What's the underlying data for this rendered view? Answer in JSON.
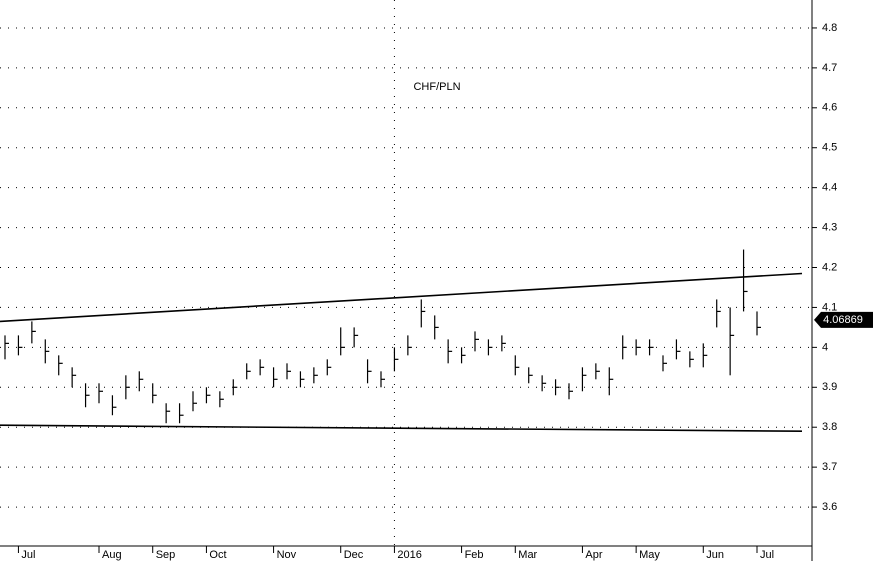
{
  "chart_data": {
    "type": "ohlc",
    "title": "CHF/PLN",
    "categories": [
      null,
      "Jul",
      null,
      null,
      null,
      null,
      null,
      "Aug",
      null,
      null,
      null,
      "Sep",
      null,
      null,
      null,
      "Oct",
      null,
      null,
      null,
      null,
      "Nov",
      null,
      null,
      null,
      null,
      "Dec",
      null,
      null,
      null,
      "2016",
      null,
      null,
      null,
      null,
      "Feb",
      null,
      null,
      null,
      "Mar",
      null,
      null,
      null,
      null,
      "Apr",
      null,
      null,
      null,
      "May",
      null,
      null,
      null,
      null,
      "Jun",
      null,
      null,
      null,
      "Jul"
    ],
    "high": [
      4.03,
      4.03,
      4.065,
      4.02,
      3.98,
      3.95,
      3.91,
      3.91,
      3.88,
      3.93,
      3.94,
      3.91,
      3.86,
      3.86,
      3.89,
      3.9,
      3.89,
      3.92,
      3.96,
      3.97,
      3.95,
      3.96,
      3.94,
      3.95,
      3.97,
      4.05,
      4.05,
      3.97,
      3.94,
      4.0,
      4.03,
      4.12,
      4.08,
      4.02,
      4.0,
      4.04,
      4.02,
      4.03,
      3.98,
      3.95,
      3.93,
      3.92,
      3.91,
      3.95,
      3.96,
      3.95,
      4.03,
      4.02,
      4.02,
      3.98,
      4.02,
      3.99,
      4.01,
      4.12,
      4.1,
      4.245,
      4.09
    ],
    "low": [
      3.97,
      3.98,
      4.01,
      3.96,
      3.93,
      3.9,
      3.85,
      3.86,
      3.83,
      3.87,
      3.89,
      3.86,
      3.81,
      3.81,
      3.84,
      3.86,
      3.85,
      3.88,
      3.92,
      3.93,
      3.9,
      3.92,
      3.9,
      3.91,
      3.93,
      3.98,
      4.0,
      3.91,
      3.9,
      3.94,
      3.98,
      4.05,
      4.02,
      3.96,
      3.96,
      3.99,
      3.98,
      3.99,
      3.93,
      3.91,
      3.89,
      3.88,
      3.87,
      3.89,
      3.92,
      3.88,
      3.97,
      3.98,
      3.98,
      3.94,
      3.97,
      3.95,
      3.95,
      4.05,
      3.93,
      4.09,
      4.03
    ],
    "close": [
      4.01,
      4.0,
      4.04,
      3.99,
      3.96,
      3.93,
      3.88,
      3.89,
      3.85,
      3.9,
      3.92,
      3.88,
      3.84,
      3.83,
      3.86,
      3.88,
      3.87,
      3.9,
      3.94,
      3.95,
      3.92,
      3.94,
      3.92,
      3.93,
      3.95,
      4.0,
      4.03,
      3.94,
      3.92,
      3.97,
      4.0,
      4.09,
      4.05,
      3.99,
      3.98,
      4.02,
      4.0,
      4.01,
      3.95,
      3.93,
      3.91,
      3.9,
      3.89,
      3.93,
      3.94,
      3.92,
      4.0,
      4.0,
      4.0,
      3.96,
      3.99,
      3.97,
      3.98,
      4.09,
      4.03,
      4.14,
      4.05
    ],
    "color": "#000000",
    "trend_lines": [
      {
        "values": [
          4.065,
          4.185
        ]
      },
      {
        "values": [
          3.805,
          3.79
        ]
      }
    ],
    "last_price": 4.06869,
    "ylim": [
      3.51,
      4.87
    ],
    "yticks": [
      3.6,
      3.7,
      3.8,
      3.9,
      4.0,
      4.1,
      4.2,
      4.3,
      4.4,
      4.5,
      4.6,
      4.7,
      4.8
    ],
    "grid": true
  }
}
